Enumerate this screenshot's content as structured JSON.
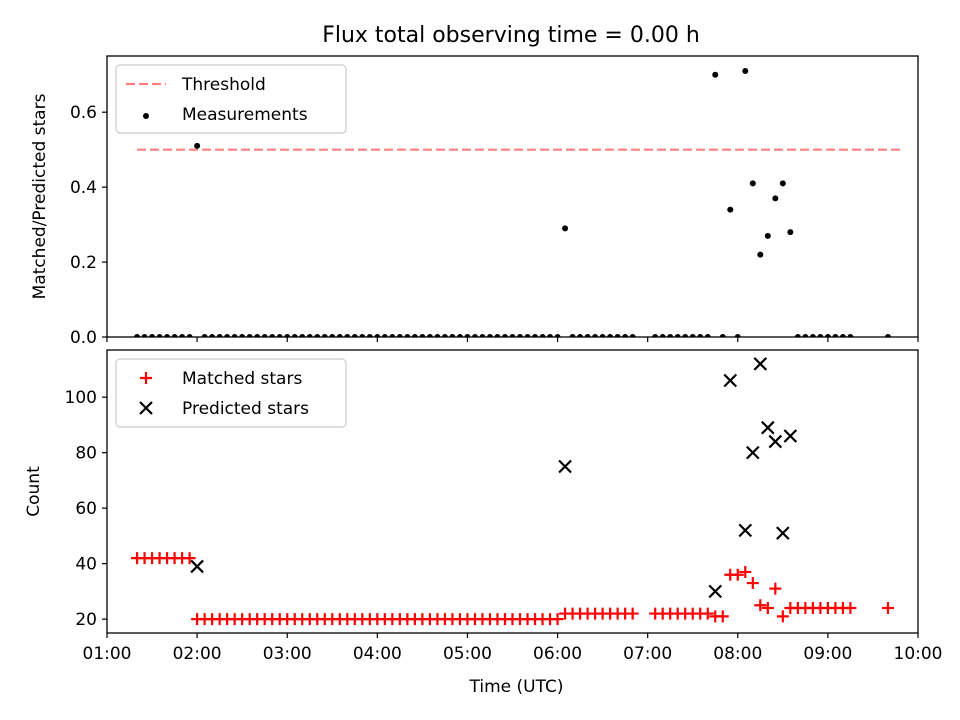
{
  "figure": {
    "title": "Flux total observing time = 0.00 h"
  },
  "chart_data": [
    {
      "type": "scatter",
      "panel": "top",
      "title": "Flux total observing time = 0.00 h",
      "xlabel": "",
      "ylabel": "Matched/Predicted stars",
      "x_unit": "hour of day (UTC)",
      "xlim": [
        "01:00",
        "10:00"
      ],
      "ylim": [
        0,
        0.75
      ],
      "yticks": [
        "0.0",
        "0.2",
        "0.4",
        "0.6"
      ],
      "grid": false,
      "legend_position": "top-left",
      "threshold": {
        "name": "Threshold",
        "value": 0.5,
        "x_start": "01:20",
        "x_end": "09:50",
        "color": "#ff7f7f",
        "style": "dashed"
      },
      "series": [
        {
          "name": "Measurements",
          "color": "#000000",
          "points": [
            [
              "01:20",
              0
            ],
            [
              "01:25",
              0
            ],
            [
              "01:30",
              0
            ],
            [
              "01:35",
              0
            ],
            [
              "01:40",
              0
            ],
            [
              "01:45",
              0
            ],
            [
              "01:50",
              0
            ],
            [
              "01:55",
              0
            ],
            [
              "02:00",
              0.51
            ],
            [
              "02:05",
              0
            ],
            [
              "02:10",
              0
            ],
            [
              "02:15",
              0
            ],
            [
              "02:20",
              0
            ],
            [
              "02:25",
              0
            ],
            [
              "02:30",
              0
            ],
            [
              "02:35",
              0
            ],
            [
              "02:40",
              0
            ],
            [
              "02:45",
              0
            ],
            [
              "02:50",
              0
            ],
            [
              "02:55",
              0
            ],
            [
              "03:00",
              0
            ],
            [
              "03:05",
              0
            ],
            [
              "03:10",
              0
            ],
            [
              "03:15",
              0
            ],
            [
              "03:20",
              0
            ],
            [
              "03:25",
              0
            ],
            [
              "03:30",
              0
            ],
            [
              "03:35",
              0
            ],
            [
              "03:40",
              0
            ],
            [
              "03:45",
              0
            ],
            [
              "03:50",
              0
            ],
            [
              "03:55",
              0
            ],
            [
              "04:00",
              0
            ],
            [
              "04:05",
              0
            ],
            [
              "04:10",
              0
            ],
            [
              "04:15",
              0
            ],
            [
              "04:20",
              0
            ],
            [
              "04:25",
              0
            ],
            [
              "04:30",
              0
            ],
            [
              "04:35",
              0
            ],
            [
              "04:40",
              0
            ],
            [
              "04:45",
              0
            ],
            [
              "04:50",
              0
            ],
            [
              "04:55",
              0
            ],
            [
              "05:00",
              0
            ],
            [
              "05:05",
              0
            ],
            [
              "05:10",
              0
            ],
            [
              "05:15",
              0
            ],
            [
              "05:20",
              0
            ],
            [
              "05:25",
              0
            ],
            [
              "05:30",
              0
            ],
            [
              "05:35",
              0
            ],
            [
              "05:40",
              0
            ],
            [
              "05:45",
              0
            ],
            [
              "05:50",
              0
            ],
            [
              "05:55",
              0
            ],
            [
              "06:00",
              0
            ],
            [
              "06:05",
              0.29
            ],
            [
              "06:10",
              0
            ],
            [
              "06:15",
              0
            ],
            [
              "06:20",
              0
            ],
            [
              "06:25",
              0
            ],
            [
              "06:30",
              0
            ],
            [
              "06:35",
              0
            ],
            [
              "06:40",
              0
            ],
            [
              "06:45",
              0
            ],
            [
              "06:50",
              0
            ],
            [
              "07:05",
              0
            ],
            [
              "07:10",
              0
            ],
            [
              "07:15",
              0
            ],
            [
              "07:20",
              0
            ],
            [
              "07:25",
              0
            ],
            [
              "07:30",
              0
            ],
            [
              "07:35",
              0
            ],
            [
              "07:40",
              0
            ],
            [
              "07:45",
              0.7
            ],
            [
              "07:50",
              0
            ],
            [
              "07:55",
              0.34
            ],
            [
              "08:00",
              0
            ],
            [
              "08:05",
              0.71
            ],
            [
              "08:10",
              0.41
            ],
            [
              "08:15",
              0.22
            ],
            [
              "08:20",
              0.27
            ],
            [
              "08:25",
              0.37
            ],
            [
              "08:30",
              0.41
            ],
            [
              "08:35",
              0.28
            ],
            [
              "08:40",
              0
            ],
            [
              "08:45",
              0
            ],
            [
              "08:50",
              0
            ],
            [
              "08:55",
              0
            ],
            [
              "09:00",
              0
            ],
            [
              "09:05",
              0
            ],
            [
              "09:10",
              0
            ],
            [
              "09:15",
              0
            ],
            [
              "09:40",
              0
            ]
          ]
        }
      ]
    },
    {
      "type": "scatter",
      "panel": "bottom",
      "title": "",
      "xlabel": "Time (UTC)",
      "ylabel": "Count",
      "x_unit": "hour of day (UTC)",
      "xlim": [
        "01:00",
        "10:00"
      ],
      "xticks": [
        "01:00",
        "02:00",
        "03:00",
        "04:00",
        "05:00",
        "06:00",
        "07:00",
        "08:00",
        "09:00",
        "10:00"
      ],
      "ylim": [
        15,
        117
      ],
      "yticks": [
        "20",
        "40",
        "60",
        "80",
        "100"
      ],
      "grid": false,
      "legend_position": "top-left",
      "series": [
        {
          "name": "Matched stars",
          "marker": "plus",
          "color": "#ff0000",
          "points": [
            [
              "01:20",
              42
            ],
            [
              "01:25",
              42
            ],
            [
              "01:30",
              42
            ],
            [
              "01:35",
              42
            ],
            [
              "01:40",
              42
            ],
            [
              "01:45",
              42
            ],
            [
              "01:50",
              42
            ],
            [
              "01:55",
              42
            ],
            [
              "02:00",
              20
            ],
            [
              "02:05",
              20
            ],
            [
              "02:10",
              20
            ],
            [
              "02:15",
              20
            ],
            [
              "02:20",
              20
            ],
            [
              "02:25",
              20
            ],
            [
              "02:30",
              20
            ],
            [
              "02:35",
              20
            ],
            [
              "02:40",
              20
            ],
            [
              "02:45",
              20
            ],
            [
              "02:50",
              20
            ],
            [
              "02:55",
              20
            ],
            [
              "03:00",
              20
            ],
            [
              "03:05",
              20
            ],
            [
              "03:10",
              20
            ],
            [
              "03:15",
              20
            ],
            [
              "03:20",
              20
            ],
            [
              "03:25",
              20
            ],
            [
              "03:30",
              20
            ],
            [
              "03:35",
              20
            ],
            [
              "03:40",
              20
            ],
            [
              "03:45",
              20
            ],
            [
              "03:50",
              20
            ],
            [
              "03:55",
              20
            ],
            [
              "04:00",
              20
            ],
            [
              "04:05",
              20
            ],
            [
              "04:10",
              20
            ],
            [
              "04:15",
              20
            ],
            [
              "04:20",
              20
            ],
            [
              "04:25",
              20
            ],
            [
              "04:30",
              20
            ],
            [
              "04:35",
              20
            ],
            [
              "04:40",
              20
            ],
            [
              "04:45",
              20
            ],
            [
              "04:50",
              20
            ],
            [
              "04:55",
              20
            ],
            [
              "05:00",
              20
            ],
            [
              "05:05",
              20
            ],
            [
              "05:10",
              20
            ],
            [
              "05:15",
              20
            ],
            [
              "05:20",
              20
            ],
            [
              "05:25",
              20
            ],
            [
              "05:30",
              20
            ],
            [
              "05:35",
              20
            ],
            [
              "05:40",
              20
            ],
            [
              "05:45",
              20
            ],
            [
              "05:50",
              20
            ],
            [
              "05:55",
              20
            ],
            [
              "06:00",
              20
            ],
            [
              "06:05",
              22
            ],
            [
              "06:10",
              22
            ],
            [
              "06:15",
              22
            ],
            [
              "06:20",
              22
            ],
            [
              "06:25",
              22
            ],
            [
              "06:30",
              22
            ],
            [
              "06:35",
              22
            ],
            [
              "06:40",
              22
            ],
            [
              "06:45",
              22
            ],
            [
              "06:50",
              22
            ],
            [
              "07:05",
              22
            ],
            [
              "07:10",
              22
            ],
            [
              "07:15",
              22
            ],
            [
              "07:20",
              22
            ],
            [
              "07:25",
              22
            ],
            [
              "07:30",
              22
            ],
            [
              "07:35",
              22
            ],
            [
              "07:40",
              22
            ],
            [
              "07:45",
              21
            ],
            [
              "07:50",
              21
            ],
            [
              "07:55",
              36
            ],
            [
              "08:00",
              36
            ],
            [
              "08:05",
              37
            ],
            [
              "08:10",
              33
            ],
            [
              "08:15",
              25
            ],
            [
              "08:20",
              24
            ],
            [
              "08:25",
              31
            ],
            [
              "08:30",
              21
            ],
            [
              "08:35",
              24
            ],
            [
              "08:40",
              24
            ],
            [
              "08:45",
              24
            ],
            [
              "08:50",
              24
            ],
            [
              "08:55",
              24
            ],
            [
              "09:00",
              24
            ],
            [
              "09:05",
              24
            ],
            [
              "09:10",
              24
            ],
            [
              "09:15",
              24
            ],
            [
              "09:40",
              24
            ]
          ]
        },
        {
          "name": "Predicted stars",
          "marker": "x",
          "color": "#000000",
          "points": [
            [
              "02:00",
              39
            ],
            [
              "06:05",
              75
            ],
            [
              "07:45",
              30
            ],
            [
              "07:55",
              106
            ],
            [
              "08:05",
              52
            ],
            [
              "08:10",
              80
            ],
            [
              "08:15",
              112
            ],
            [
              "08:20",
              89
            ],
            [
              "08:25",
              84
            ],
            [
              "08:30",
              51
            ],
            [
              "08:35",
              86
            ]
          ]
        }
      ]
    }
  ]
}
